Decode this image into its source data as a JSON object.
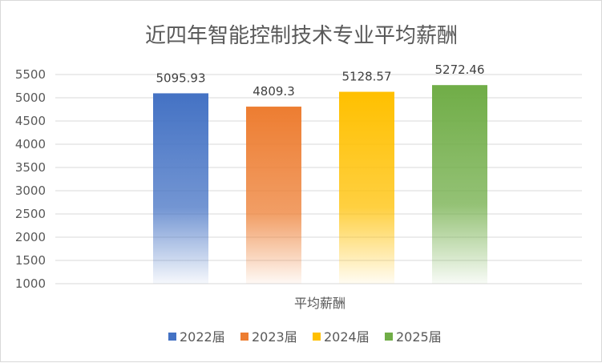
{
  "chart_data": {
    "type": "bar",
    "title": "近四年智能控制技术专业平均薪酬",
    "xlabel": "平均薪酬",
    "ylabel": "",
    "ylim": [
      1000,
      5500
    ],
    "yticks": [
      "5500",
      "5000",
      "4500",
      "4000",
      "3500",
      "3000",
      "2500",
      "2000",
      "1500",
      "1000"
    ],
    "ytick_values": [
      5500,
      5000,
      4500,
      4000,
      3500,
      3000,
      2500,
      2000,
      1500,
      1000
    ],
    "grid": true,
    "legend_position": "bottom",
    "series": [
      {
        "name": "2022届",
        "value": 5095.93,
        "label": "5095.93",
        "color": "#4472C4"
      },
      {
        "name": "2023届",
        "value": 4809.3,
        "label": "4809.3",
        "color": "#ED7D31"
      },
      {
        "name": "2024届",
        "value": 5128.57,
        "label": "5128.57",
        "color": "#FFC000"
      },
      {
        "name": "2025届",
        "value": 5272.46,
        "label": "5272.46",
        "color": "#70AD47"
      }
    ]
  }
}
